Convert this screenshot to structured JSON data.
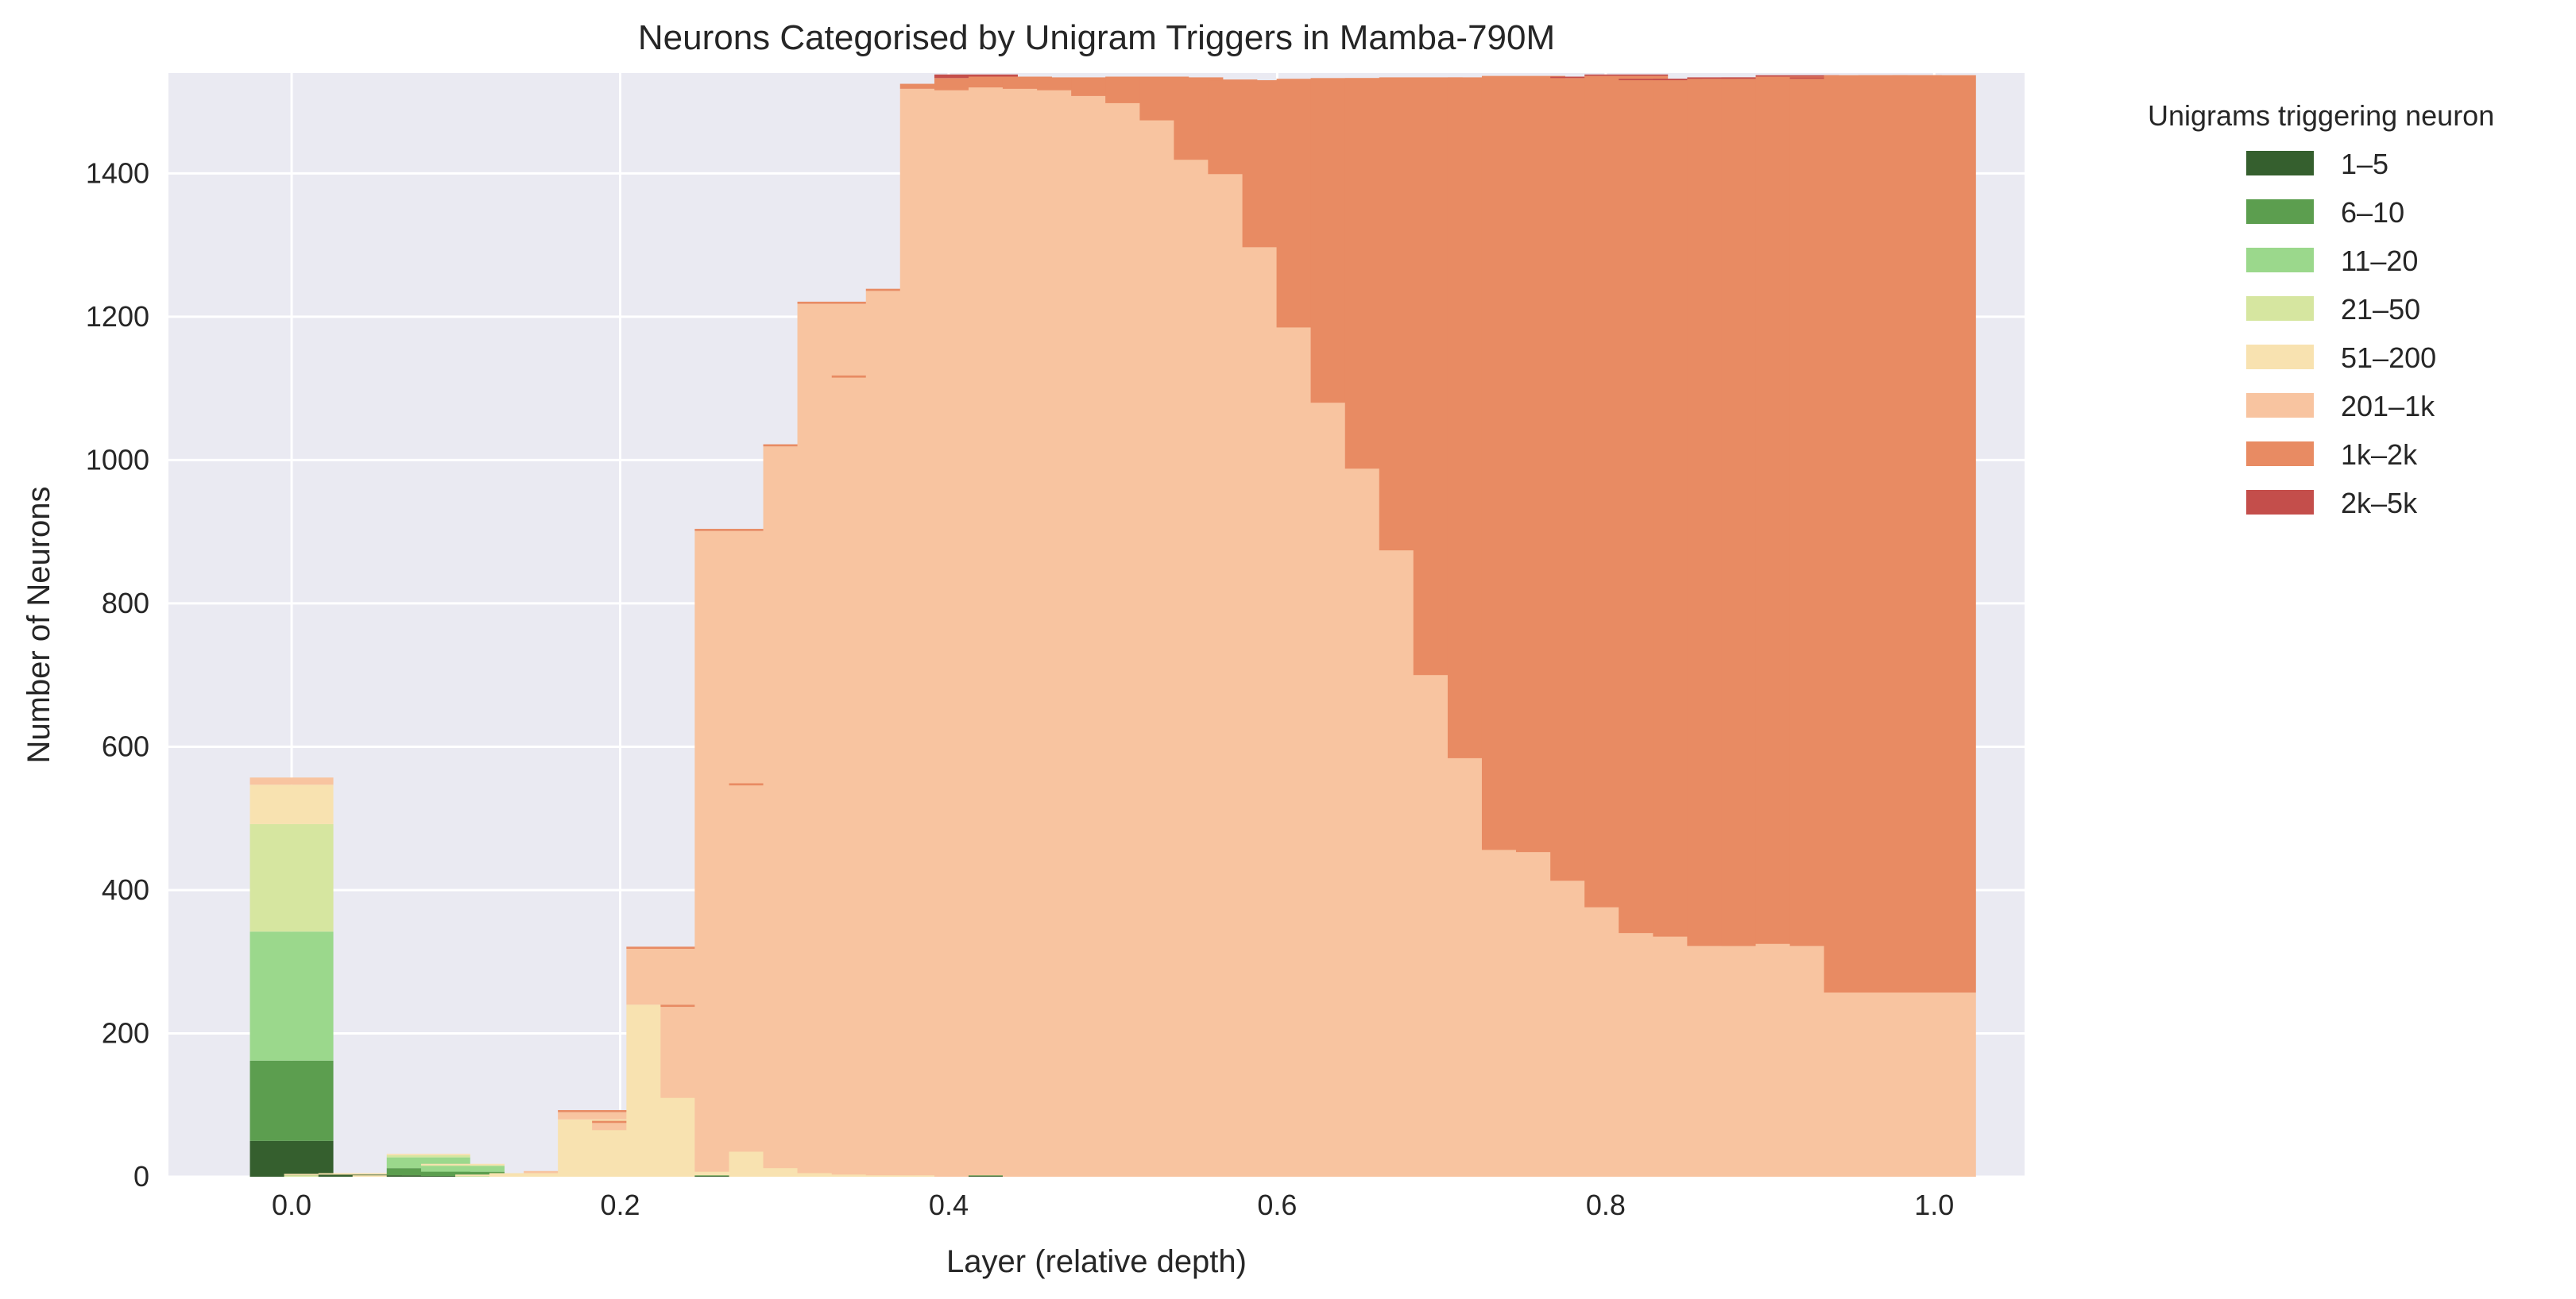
{
  "chart_data": {
    "type": "bar",
    "stacked": true,
    "title": "Neurons Categorised by Unigram Triggers in Mamba-790M",
    "xlabel": "Layer (relative depth)",
    "ylabel": "Number of Neurons",
    "xlim": [
      -0.075,
      1.055
    ],
    "ylim": [
      0,
      1540
    ],
    "xticks": [
      0.0,
      0.2,
      0.4,
      0.6,
      0.8,
      1.0
    ],
    "xtick_labels": [
      "0.0",
      "0.2",
      "0.4",
      "0.6",
      "0.8",
      "1.0"
    ],
    "yticks": [
      0,
      200,
      400,
      600,
      800,
      1000,
      1200,
      1400
    ],
    "ytick_labels": [
      "0",
      "200",
      "400",
      "600",
      "800",
      "1000",
      "1200",
      "1400"
    ],
    "grid": true,
    "background": "#eaeaf2",
    "bar_width": 0.0508,
    "legend": {
      "title": "Unigrams triggering neuron",
      "placement": "outside-right",
      "entries": [
        "1–5",
        "6–10",
        "11–20",
        "21–50",
        "51–200",
        "201–1k",
        "1k–2k",
        "2k–5k"
      ]
    },
    "x": [
      0.0,
      0.0208,
      0.0417,
      0.0625,
      0.0833,
      0.1042,
      0.125,
      0.1458,
      0.1667,
      0.1875,
      0.2083,
      0.2292,
      0.25,
      0.2708,
      0.2917,
      0.3125,
      0.3333,
      0.3542,
      0.375,
      0.3958,
      0.4167,
      0.4375,
      0.4583,
      0.4792,
      0.5,
      0.5208,
      0.5417,
      0.5625,
      0.5833,
      0.6042,
      0.625,
      0.6458,
      0.6667,
      0.6875,
      0.7083,
      0.7292,
      0.75,
      0.7708,
      0.7917,
      0.8125,
      0.8333,
      0.8542,
      0.875,
      0.8958,
      0.9167,
      0.9375,
      0.9583,
      0.9792,
      1.0
    ],
    "series": [
      {
        "name": "1–5",
        "color": "#355f2e",
        "values": [
          50,
          0,
          3,
          0,
          2,
          1,
          0,
          0,
          0,
          0,
          0,
          0,
          0,
          1,
          0,
          0,
          0,
          0,
          0,
          0,
          0,
          1,
          0,
          0,
          0,
          0,
          0,
          0,
          0,
          0,
          0,
          0,
          0,
          0,
          0,
          0,
          0,
          0,
          0,
          0,
          0,
          0,
          0,
          0,
          0,
          0,
          0,
          0,
          0
        ]
      },
      {
        "name": "6–10",
        "color": "#5c9e4f",
        "values": [
          112,
          0,
          0,
          0,
          10,
          6,
          0,
          0,
          0,
          0,
          0,
          0,
          0,
          1,
          0,
          0,
          0,
          0,
          0,
          0,
          0,
          1,
          0,
          0,
          0,
          0,
          0,
          0,
          0,
          0,
          0,
          0,
          0,
          0,
          0,
          0,
          0,
          0,
          0,
          0,
          0,
          0,
          0,
          0,
          0,
          0,
          0,
          0,
          0
        ]
      },
      {
        "name": "11–20",
        "color": "#9bd88c",
        "values": [
          180,
          0,
          0,
          0,
          15,
          8,
          0,
          0,
          0,
          0,
          0,
          0,
          0,
          0,
          0,
          0,
          0,
          0,
          0,
          0,
          0,
          0,
          0,
          0,
          0,
          0,
          0,
          0,
          0,
          0,
          0,
          0,
          0,
          0,
          0,
          0,
          0,
          0,
          0,
          0,
          0,
          0,
          0,
          0,
          0,
          0,
          0,
          0,
          0
        ]
      },
      {
        "name": "21–50",
        "color": "#d6e6a0",
        "values": [
          150,
          2,
          0,
          0,
          3,
          1,
          1,
          0,
          0,
          0,
          0,
          0,
          0,
          0,
          0,
          0,
          0,
          0,
          0,
          0,
          0,
          0,
          0,
          0,
          0,
          0,
          0,
          0,
          0,
          0,
          0,
          0,
          0,
          0,
          0,
          0,
          0,
          0,
          0,
          0,
          0,
          0,
          0,
          0,
          0,
          0,
          0,
          0,
          0
        ]
      },
      {
        "name": "51–200",
        "color": "#f8e2b0",
        "values": [
          55,
          2,
          2,
          2,
          2,
          2,
          2,
          5,
          5,
          80,
          65,
          240,
          110,
          5,
          35,
          12,
          5,
          3,
          2,
          2,
          0,
          0,
          0,
          0,
          0,
          0,
          0,
          0,
          0,
          0,
          0,
          0,
          0,
          0,
          0,
          0,
          0,
          0,
          0,
          0,
          0,
          0,
          0,
          0,
          0,
          0,
          0,
          0,
          0
        ]
      },
      {
        "name": "201–1k",
        "color": "#f8c4a0",
        "values": [
          10,
          0,
          0,
          0,
          0,
          0,
          0,
          0,
          3,
          10,
          10,
          78,
          127,
          894,
          511,
          1007,
          1213,
          1112,
          1234,
          1516,
          1516,
          1518,
          1518,
          1516,
          1508,
          1498,
          1474,
          1419,
          1399,
          1297,
          1185,
          1080,
          988,
          874,
          700,
          584,
          456,
          453,
          413,
          376,
          340,
          335,
          322,
          322,
          325,
          322,
          257,
          257,
          257
        ]
      },
      {
        "name": "1k–2k",
        "color": "#e88b63",
        "values": [
          0,
          0,
          0,
          0,
          0,
          0,
          0,
          0,
          0,
          3,
          3,
          3,
          3,
          3,
          3,
          3,
          3,
          3,
          3,
          7,
          17,
          15,
          15,
          18,
          25,
          37,
          60,
          112,
          130,
          233,
          347,
          453,
          545,
          660,
          830,
          950,
          1080,
          1080,
          1120,
          1160,
          1190,
          1195,
          1210,
          1210,
          1210,
          1210,
          1280,
          1280,
          1280
        ]
      },
      {
        "name": "2k–5k",
        "color": "#c44e4b",
        "values": [
          0,
          0,
          0,
          0,
          0,
          0,
          0,
          0,
          0,
          0,
          0,
          0,
          0,
          0,
          0,
          0,
          0,
          0,
          0,
          0,
          5,
          0,
          0,
          0,
          0,
          0,
          0,
          0,
          0,
          0,
          0,
          0,
          0,
          0,
          0,
          0,
          0,
          0,
          2,
          2,
          2,
          2,
          2,
          2,
          2,
          2,
          0,
          0,
          0
        ]
      }
    ]
  }
}
